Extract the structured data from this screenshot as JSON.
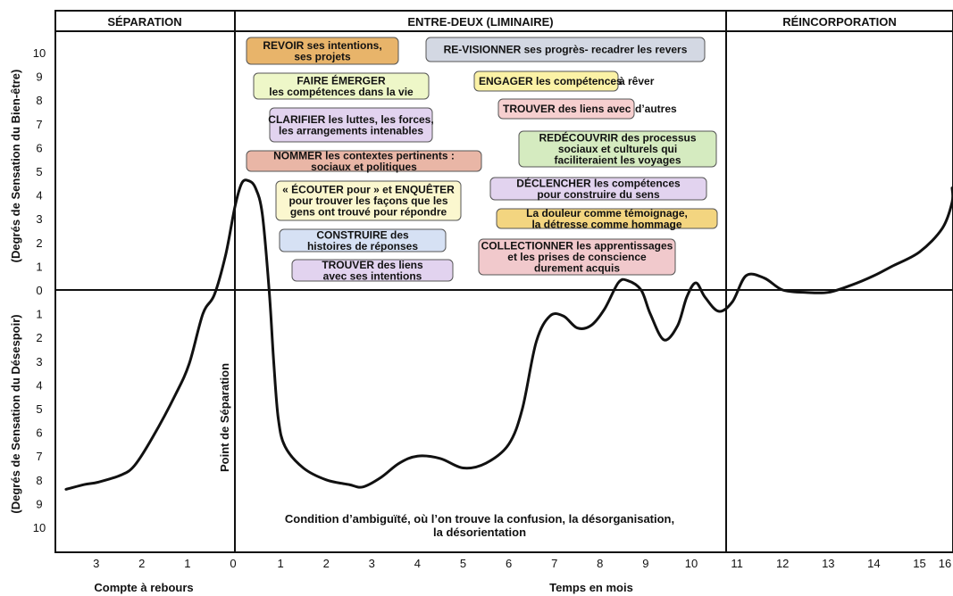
{
  "colors": {
    "frame": "#111111",
    "curve": "#111111",
    "orange": "#e8b46a",
    "grey_blue": "#d3d8e3",
    "lime": "#eef7c8",
    "yellow": "#fbf2a6",
    "pink": "#f6cfcf",
    "lavender": "#e2d3ef",
    "salmon": "#e9b6a6",
    "green": "#d5ebc0",
    "cream": "#fbf7cf",
    "light_blue": "#d6e1f4",
    "gold": "#f3d580",
    "pink2": "#f1c9cc"
  },
  "phases": {
    "separation": "SÉPARATION",
    "liminal": "ENTRE-DEUX (LIMINAIRE)",
    "reincorporation": "RÉINCORPORATION"
  },
  "y_axis": {
    "upper_label": "(Degrés de Sensation du Bien-être)",
    "lower_label": "(Degrés de Sensation du Désespoir)",
    "upper_ticks": [
      "10",
      "9",
      "8",
      "7",
      "6",
      "5",
      "4",
      "3",
      "2",
      "1",
      "0"
    ],
    "lower_ticks": [
      "1",
      "2",
      "3",
      "4",
      "5",
      "6",
      "7",
      "8",
      "9",
      "10"
    ]
  },
  "x_axis": {
    "countdown_ticks": [
      "3",
      "2",
      "1",
      "0"
    ],
    "month_ticks": [
      "1",
      "2",
      "3",
      "4",
      "5",
      "6",
      "7",
      "8",
      "9",
      "10",
      "11",
      "12",
      "13",
      "14",
      "15",
      "16"
    ],
    "countdown_label": "Compte à rebours",
    "months_label": "Temps en mois"
  },
  "separation_point_label": "Point de Séparation",
  "caption": {
    "line1": "Condition d’ambiguïté, où l’on trouve la confusion, la désorganisation,",
    "line2": "la désorientation"
  },
  "boxes": [
    {
      "lines": [
        "REVOIR ses intentions,",
        "ses projets"
      ],
      "color": "orange"
    },
    {
      "lines": [
        "RE-VISIONNER ses progrès- recadrer les revers"
      ],
      "color": "grey_blue"
    },
    {
      "lines": [
        "FAIRE ÉMERGER",
        "les compétences dans la vie"
      ],
      "color": "lime"
    },
    {
      "lines": [
        "ENGAGER les compétences",
        "à rêver"
      ],
      "color": "yellow"
    },
    {
      "lines": [
        "TROUVER des liens avec",
        "d’autres"
      ],
      "color": "pink"
    },
    {
      "lines": [
        "CLARIFIER les luttes, les forces,",
        "les arrangements intenables"
      ],
      "color": "lavender"
    },
    {
      "lines": [
        "REDÉCOUVRIR des processus",
        "sociaux et culturels qui",
        "faciliteraient les voyages"
      ],
      "color": "green"
    },
    {
      "lines": [
        "NOMMER les contextes pertinents :",
        "sociaux et politiques"
      ],
      "color": "salmon"
    },
    {
      "lines": [
        "DÉCLENCHER les compétences",
        "pour construire du sens"
      ],
      "color": "lavender"
    },
    {
      "lines": [
        "« ÉCOUTER pour » et ENQUÊTER",
        "pour trouver les façons que les",
        "gens ont trouvé pour répondre"
      ],
      "color": "cream"
    },
    {
      "lines": [
        "La douleur comme témoignage,",
        "la détresse comme hommage"
      ],
      "color": "gold"
    },
    {
      "lines": [
        "CONSTRUIRE des",
        "histoires de réponses"
      ],
      "color": "light_blue"
    },
    {
      "lines": [
        "COLLECTIONNER les apprentissages",
        "et les prises de conscience",
        "durement acquis"
      ],
      "color": "pink2"
    },
    {
      "lines": [
        "TROUVER des liens",
        "avec ses intentions"
      ],
      "color": "lavender"
    }
  ],
  "chart_data": {
    "type": "line",
    "xlabel": "Temps en mois",
    "ylabel": "",
    "ylim": [
      -10,
      10
    ],
    "series": [
      {
        "x": [
          -3.7,
          -3.3,
          -3,
          -2.5,
          -2.2,
          -1.8,
          -1.3,
          -1.0,
          -0.7,
          -0.45,
          -0.2,
          0.0,
          0.15,
          0.3,
          0.45,
          0.6,
          0.75,
          0.85,
          0.95,
          1.1,
          1.5,
          2.0,
          2.5,
          2.8,
          3.2,
          3.6,
          4.0,
          4.5,
          5.0,
          5.5,
          6.0,
          6.3,
          6.6,
          6.9,
          7.2,
          7.5,
          7.8,
          8.1,
          8.4,
          8.6,
          8.9,
          9.1,
          9.4,
          9.7,
          9.9,
          10.1,
          10.3,
          10.6,
          10.9,
          11.2,
          11.6,
          12.0,
          12.5,
          13.0,
          13.5,
          14.0,
          14.4,
          15.0,
          15.5,
          16.0,
          16.2
        ],
        "values": [
          -8.4,
          -8.2,
          -8.1,
          -7.8,
          -7.4,
          -6.2,
          -4.4,
          -3.1,
          -1.0,
          -0.2,
          1.5,
          3.5,
          4.5,
          4.6,
          4.3,
          3.2,
          0.0,
          -3.0,
          -5.4,
          -6.6,
          -7.5,
          -8.0,
          -8.2,
          -8.3,
          -7.9,
          -7.3,
          -7.0,
          -7.1,
          -7.5,
          -7.3,
          -6.5,
          -5.0,
          -2.2,
          -1.1,
          -1.1,
          -1.6,
          -1.5,
          -0.8,
          0.3,
          0.4,
          0.0,
          -1.0,
          -2.1,
          -1.5,
          -0.3,
          0.3,
          -0.3,
          -0.9,
          -0.5,
          0.6,
          0.5,
          0.0,
          -0.1,
          -0.1,
          0.2,
          0.6,
          1.0,
          1.6,
          2.6,
          3.7,
          4.3
        ]
      }
    ]
  }
}
